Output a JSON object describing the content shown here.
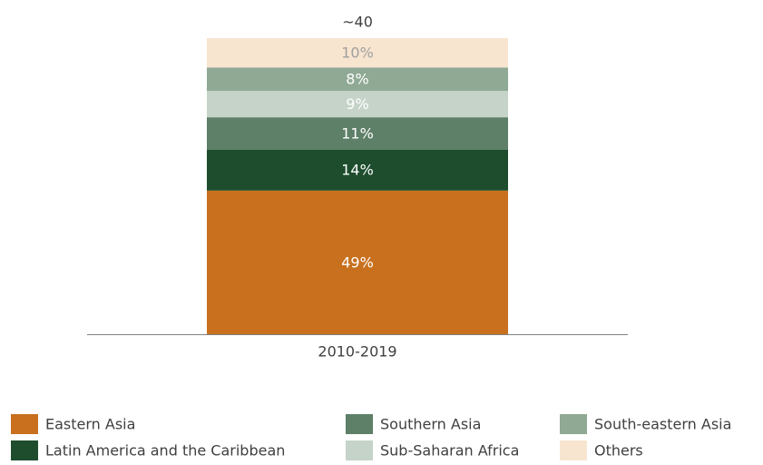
{
  "chart_data": {
    "type": "stacked_bar",
    "categories": [
      "2010-2019"
    ],
    "annotation": "~40",
    "series": [
      {
        "name": "Eastern Asia",
        "color": "#c8701e",
        "values": [
          49
        ],
        "value_labels": [
          "49%"
        ]
      },
      {
        "name": "Latin America and the Caribbean",
        "color": "#1e4d2e",
        "values": [
          14
        ],
        "value_labels": [
          "14%"
        ]
      },
      {
        "name": "Southern Asia",
        "color": "#5e7f68",
        "values": [
          11
        ],
        "value_labels": [
          "11%"
        ]
      },
      {
        "name": "Sub-Saharan Africa",
        "color": "#c5d3c8",
        "values": [
          9
        ],
        "value_labels": [
          "9%"
        ]
      },
      {
        "name": "South-eastern Asia",
        "color": "#8fa994",
        "values": [
          8
        ],
        "value_labels": [
          "8%"
        ]
      },
      {
        "name": "Others",
        "color": "#f8e5cf",
        "values": [
          10
        ],
        "value_labels": [
          "10%"
        ]
      }
    ],
    "legend": "bottom"
  }
}
